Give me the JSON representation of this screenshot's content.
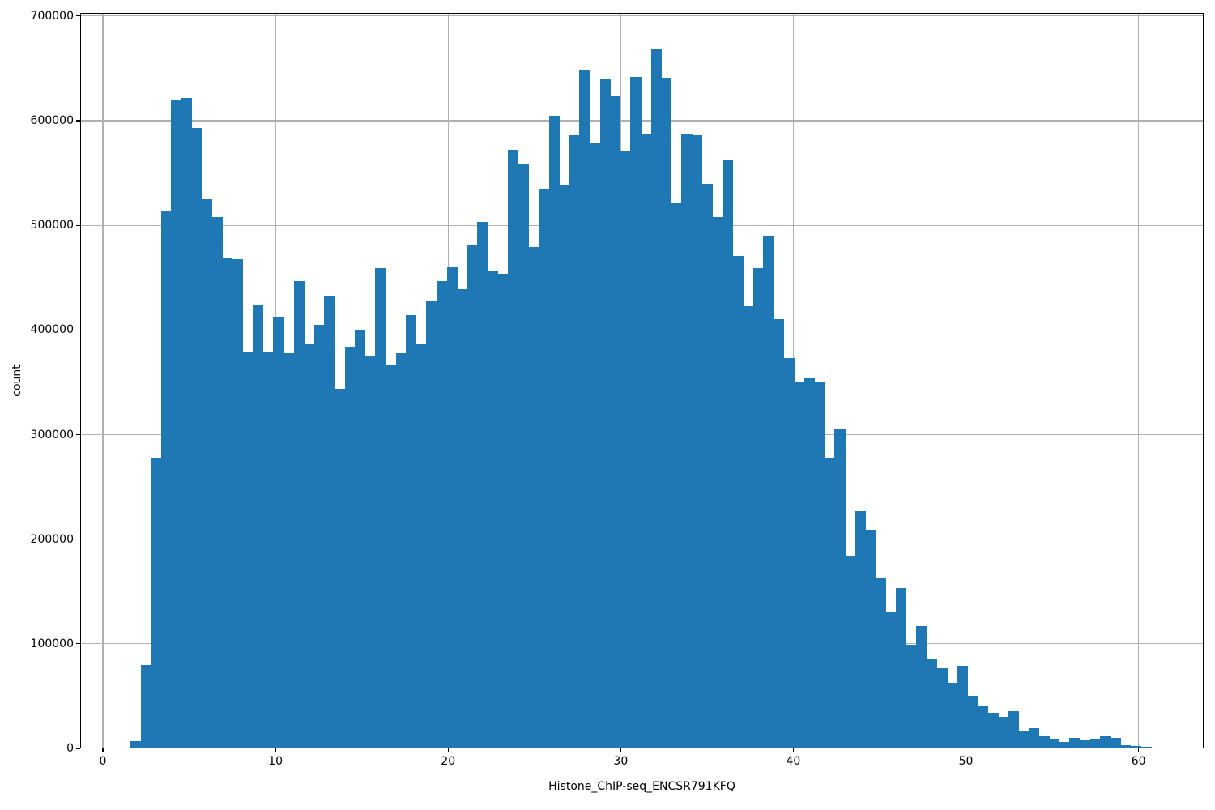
{
  "figure": {
    "background_color": "#ffffff",
    "bar_color": "#1f77b4",
    "grid_color": "#b0b0b0",
    "spine_color": "#000000",
    "text_color": "#000000"
  },
  "chart_data": {
    "type": "bar",
    "subtype": "histogram",
    "title": "",
    "xlabel": "Histone_ChIP-seq_ENCSR791KFQ",
    "ylabel": "count",
    "grid": true,
    "legend": false,
    "xlim": [
      -1.314,
      63.77
    ],
    "ylim": [
      0,
      703000
    ],
    "xticks": [
      0,
      10,
      20,
      30,
      40,
      50,
      60
    ],
    "yticks": [
      0,
      100000,
      200000,
      300000,
      400000,
      500000,
      600000,
      700000
    ],
    "bin_start": 1.595,
    "bin_width": 0.5913,
    "counts": [
      7000,
      80000,
      277000,
      513000,
      620000,
      622000,
      593000,
      525000,
      508000,
      469000,
      468000,
      379000,
      424000,
      379000,
      413000,
      378000,
      447000,
      386000,
      405000,
      432000,
      344000,
      384000,
      400000,
      375000,
      459000,
      366000,
      378000,
      414000,
      386000,
      427000,
      447000,
      460000,
      439000,
      481000,
      503000,
      457000,
      454000,
      572000,
      558000,
      479000,
      535000,
      605000,
      538000,
      586000,
      649000,
      578000,
      640000,
      624000,
      571000,
      642000,
      587000,
      669000,
      641000,
      521000,
      588000,
      586000,
      540000,
      508000,
      563000,
      471000,
      423000,
      459000,
      490000,
      410000,
      373000,
      351000,
      354000,
      351000,
      277000,
      305000,
      184000,
      227000,
      209000,
      163000,
      130000,
      153000,
      99000,
      117000,
      86000,
      77000,
      63000,
      79000,
      50000,
      41000,
      34000,
      30000,
      36000,
      16000,
      19000,
      12000,
      9000,
      6000,
      10000,
      7500,
      9000,
      12000,
      10000,
      3000,
      2000,
      1500
    ]
  }
}
